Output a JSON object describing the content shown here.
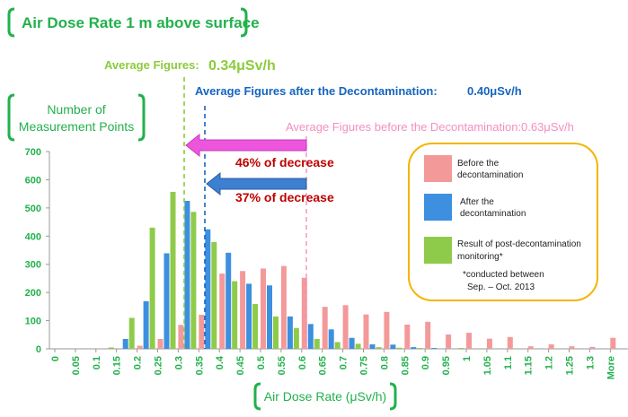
{
  "chart_data": {
    "type": "bar",
    "title": "Air Dose Rate 1 m above surface",
    "xlabel": "Air Dose Rate (μSv/h)",
    "ylabel": "Number of Measurement Points",
    "ylim": [
      0,
      700
    ],
    "yticks": [
      "0",
      "100",
      "200",
      "300",
      "400",
      "500",
      "600",
      "700"
    ],
    "grid": false,
    "legend_position": "right",
    "categories": [
      "0",
      "0.05",
      "0.1",
      "0.15",
      "0.2",
      "0.25",
      "0.3",
      "0.35",
      "0.4",
      "0.45",
      "0.5",
      "0.55",
      "0.6",
      "0.65",
      "0.7",
      "0.75",
      "0.8",
      "0.85",
      "0.9",
      "0.95",
      "1",
      "1.05",
      "1.1",
      "1.15",
      "1.2",
      "1.25",
      "1.3",
      "More"
    ],
    "series": [
      {
        "name": "Before the decontamination",
        "color": "#f4999a",
        "values": [
          0,
          0,
          0,
          0,
          11,
          35,
          85,
          121,
          267,
          276,
          285,
          294,
          252,
          149,
          155,
          122,
          131,
          86,
          96,
          51,
          57,
          36,
          42,
          9,
          16,
          9,
          7,
          39
        ]
      },
      {
        "name": "After the decontamination",
        "color": "#3d8fe0",
        "values": [
          0,
          0,
          0,
          35,
          169,
          339,
          525,
          424,
          341,
          231,
          225,
          115,
          88,
          69,
          39,
          16,
          15,
          6,
          3,
          0,
          0,
          0,
          0,
          0,
          0,
          0,
          0,
          0
        ]
      },
      {
        "name": "Result of post-decontamination monitoring*",
        "color": "#8fcb4a",
        "values": [
          0,
          0,
          5,
          110,
          430,
          557,
          486,
          379,
          240,
          159,
          115,
          74,
          35,
          24,
          18,
          6,
          4,
          3,
          0,
          3,
          0,
          0,
          0,
          0,
          0,
          0,
          0,
          0
        ]
      }
    ],
    "legend_note": [
      "*conducted between",
      "Sep. – Oct. 2013"
    ],
    "annotations": {
      "avg_monitoring": {
        "label": "Average Figures:",
        "value": "0.34μSv/h",
        "x": 0.34,
        "color": "#8ccb3c"
      },
      "avg_after": {
        "label": "Average Figures after the Decontamination:",
        "value": "0.40μSv/h",
        "x": 0.4,
        "color": "#1565c0"
      },
      "avg_before": {
        "label": "Average Figures before the Decontamination:",
        "value": "0.63μSv/h",
        "x": 0.63,
        "color": "#f48fc0"
      },
      "decrease_monitoring": "46% of decrease",
      "decrease_after": "37% of decrease"
    },
    "ylabel_lines": [
      "Number of",
      "Measurement Points"
    ]
  }
}
